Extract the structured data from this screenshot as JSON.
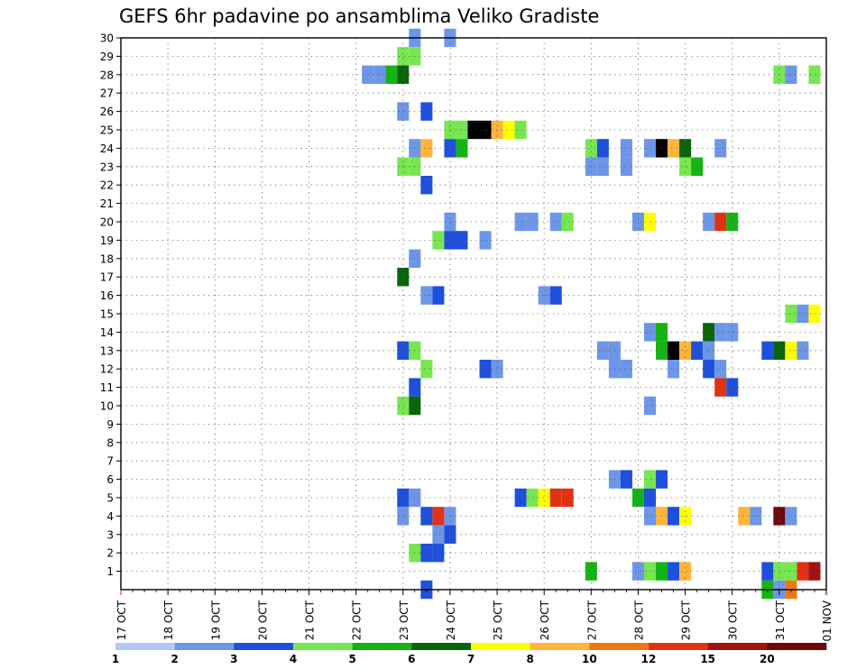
{
  "chart_data": {
    "type": "heatmap",
    "title": "GEFS 6hr padavine po ansamblima Veliko Gradiste",
    "xlabel": "",
    "ylabel": "",
    "x_ticks": [
      "17 OCT",
      "18 OCT",
      "19 OCT",
      "20 OCT",
      "21 OCT",
      "22 OCT",
      "23 OCT",
      "24 OCT",
      "25 OCT",
      "26 OCT",
      "27 OCT",
      "28 OCT",
      "29 OCT",
      "30 OCT",
      "31 OCT",
      "01 NOV"
    ],
    "xlim": [
      0,
      60
    ],
    "x_unit": "6-hour steps from 17 OCT 00Z",
    "y_ticks": [
      "1",
      "2",
      "3",
      "4",
      "5",
      "6",
      "7",
      "8",
      "9",
      "10",
      "11",
      "12",
      "13",
      "14",
      "15",
      "16",
      "17",
      "18",
      "19",
      "20",
      "21",
      "22",
      "23",
      "24",
      "25",
      "26",
      "27",
      "28",
      "29",
      "30"
    ],
    "ylim": [
      0,
      30
    ],
    "y_meaning": "ensemble member",
    "colorbar": {
      "labels": [
        "1",
        "2",
        "3",
        "4",
        "5",
        "6",
        "7",
        "8",
        "10",
        "12",
        "15",
        "20"
      ],
      "colors": [
        "#b4c8f5",
        "#6e96e8",
        "#1e50dc",
        "#78e650",
        "#14b414",
        "#0a640a",
        "#ffff00",
        "#ffb43c",
        "#f07814",
        "#e13214",
        "#a01414",
        "#6e0a0a"
      ]
    },
    "cells": [
      [
        25,
        30,
        1
      ],
      [
        28,
        30,
        1
      ],
      [
        24,
        29,
        3
      ],
      [
        25,
        29,
        3
      ],
      [
        21,
        28,
        1
      ],
      [
        22,
        28,
        1
      ],
      [
        23,
        28,
        4
      ],
      [
        24,
        28,
        5
      ],
      [
        56,
        28,
        3
      ],
      [
        57,
        28,
        1
      ],
      [
        59,
        28,
        3
      ],
      [
        24,
        26,
        1
      ],
      [
        26,
        26,
        2
      ],
      [
        28,
        25,
        3
      ],
      [
        29,
        25,
        3
      ],
      [
        30,
        25,
        12
      ],
      [
        31,
        25,
        12
      ],
      [
        32,
        25,
        7
      ],
      [
        33,
        25,
        6
      ],
      [
        34,
        25,
        3
      ],
      [
        25,
        24,
        1
      ],
      [
        26,
        24,
        7
      ],
      [
        28,
        24,
        2
      ],
      [
        29,
        24,
        4
      ],
      [
        40,
        24,
        3
      ],
      [
        41,
        24,
        2
      ],
      [
        43,
        24,
        1
      ],
      [
        45,
        24,
        1
      ],
      [
        46,
        24,
        12
      ],
      [
        47,
        24,
        7
      ],
      [
        48,
        24,
        5
      ],
      [
        51,
        24,
        1
      ],
      [
        24,
        23,
        3
      ],
      [
        25,
        23,
        3
      ],
      [
        40,
        23,
        1
      ],
      [
        41,
        23,
        1
      ],
      [
        43,
        23,
        1
      ],
      [
        48,
        23,
        3
      ],
      [
        49,
        23,
        4
      ],
      [
        26,
        22,
        2
      ],
      [
        28,
        20,
        1
      ],
      [
        34,
        20,
        1
      ],
      [
        35,
        20,
        1
      ],
      [
        37,
        20,
        1
      ],
      [
        38,
        20,
        3
      ],
      [
        44,
        20,
        1
      ],
      [
        45,
        20,
        6
      ],
      [
        50,
        20,
        1
      ],
      [
        51,
        20,
        9
      ],
      [
        52,
        20,
        4
      ],
      [
        27,
        19,
        3
      ],
      [
        28,
        19,
        2
      ],
      [
        29,
        19,
        2
      ],
      [
        31,
        19,
        1
      ],
      [
        25,
        18,
        1
      ],
      [
        24,
        17,
        5
      ],
      [
        26,
        16,
        1
      ],
      [
        27,
        16,
        2
      ],
      [
        36,
        16,
        1
      ],
      [
        37,
        16,
        2
      ],
      [
        57,
        15,
        3
      ],
      [
        58,
        15,
        1
      ],
      [
        59,
        15,
        6
      ],
      [
        45,
        14,
        1
      ],
      [
        46,
        14,
        4
      ],
      [
        50,
        14,
        5
      ],
      [
        51,
        14,
        1
      ],
      [
        52,
        14,
        1
      ],
      [
        24,
        13,
        2
      ],
      [
        25,
        13,
        3
      ],
      [
        41,
        13,
        1
      ],
      [
        42,
        13,
        1
      ],
      [
        46,
        13,
        4
      ],
      [
        47,
        13,
        12
      ],
      [
        48,
        13,
        7
      ],
      [
        49,
        13,
        2
      ],
      [
        50,
        13,
        1
      ],
      [
        55,
        13,
        2
      ],
      [
        56,
        13,
        5
      ],
      [
        57,
        13,
        6
      ],
      [
        58,
        13,
        1
      ],
      [
        26,
        12,
        3
      ],
      [
        31,
        12,
        2
      ],
      [
        32,
        12,
        1
      ],
      [
        42,
        12,
        1
      ],
      [
        43,
        12,
        1
      ],
      [
        47,
        12,
        1
      ],
      [
        50,
        12,
        2
      ],
      [
        51,
        12,
        1
      ],
      [
        25,
        11,
        2
      ],
      [
        51,
        11,
        9
      ],
      [
        52,
        11,
        2
      ],
      [
        24,
        10,
        3
      ],
      [
        25,
        10,
        5
      ],
      [
        45,
        10,
        1
      ],
      [
        42,
        6,
        1
      ],
      [
        43,
        6,
        2
      ],
      [
        45,
        6,
        3
      ],
      [
        46,
        6,
        2
      ],
      [
        24,
        5,
        2
      ],
      [
        25,
        5,
        1
      ],
      [
        34,
        5,
        2
      ],
      [
        35,
        5,
        3
      ],
      [
        36,
        5,
        6
      ],
      [
        37,
        5,
        9
      ],
      [
        38,
        5,
        9
      ],
      [
        44,
        5,
        4
      ],
      [
        45,
        5,
        2
      ],
      [
        24,
        4,
        1
      ],
      [
        26,
        4,
        2
      ],
      [
        27,
        4,
        9
      ],
      [
        28,
        4,
        1
      ],
      [
        45,
        4,
        1
      ],
      [
        46,
        4,
        7
      ],
      [
        47,
        4,
        2
      ],
      [
        48,
        4,
        6
      ],
      [
        53,
        4,
        7
      ],
      [
        54,
        4,
        1
      ],
      [
        56,
        4,
        11
      ],
      [
        57,
        4,
        1
      ],
      [
        27,
        3,
        1
      ],
      [
        28,
        3,
        2
      ],
      [
        25,
        2,
        3
      ],
      [
        26,
        2,
        2
      ],
      [
        27,
        2,
        2
      ],
      [
        40,
        1,
        4
      ],
      [
        44,
        1,
        1
      ],
      [
        45,
        1,
        3
      ],
      [
        46,
        1,
        4
      ],
      [
        47,
        1,
        2
      ],
      [
        48,
        1,
        7
      ],
      [
        55,
        1,
        2
      ],
      [
        56,
        1,
        3
      ],
      [
        57,
        1,
        3
      ],
      [
        58,
        1,
        9
      ],
      [
        59,
        1,
        10
      ],
      [
        26,
        0,
        2
      ],
      [
        55,
        0,
        4
      ],
      [
        56,
        0,
        1
      ],
      [
        57,
        0,
        8
      ]
    ]
  }
}
